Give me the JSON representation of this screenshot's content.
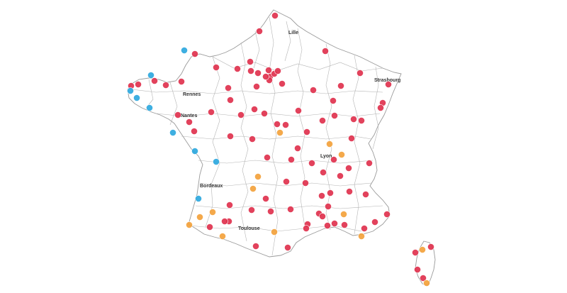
{
  "colors": {
    "red": "#e0334f",
    "orange": "#f4a23c",
    "blue": "#2ea9df",
    "border": "#9a9a9a",
    "label": "#333333"
  },
  "cities": {
    "lille": "Lille",
    "rennes": "Rennes",
    "nantes": "Nantes",
    "strasbourg": "Strasbourg",
    "lyon": "Lyon",
    "bordeaux": "Bordeaux",
    "toulouse": "Toulouse"
  },
  "icons": [
    "map-point-marker"
  ]
}
